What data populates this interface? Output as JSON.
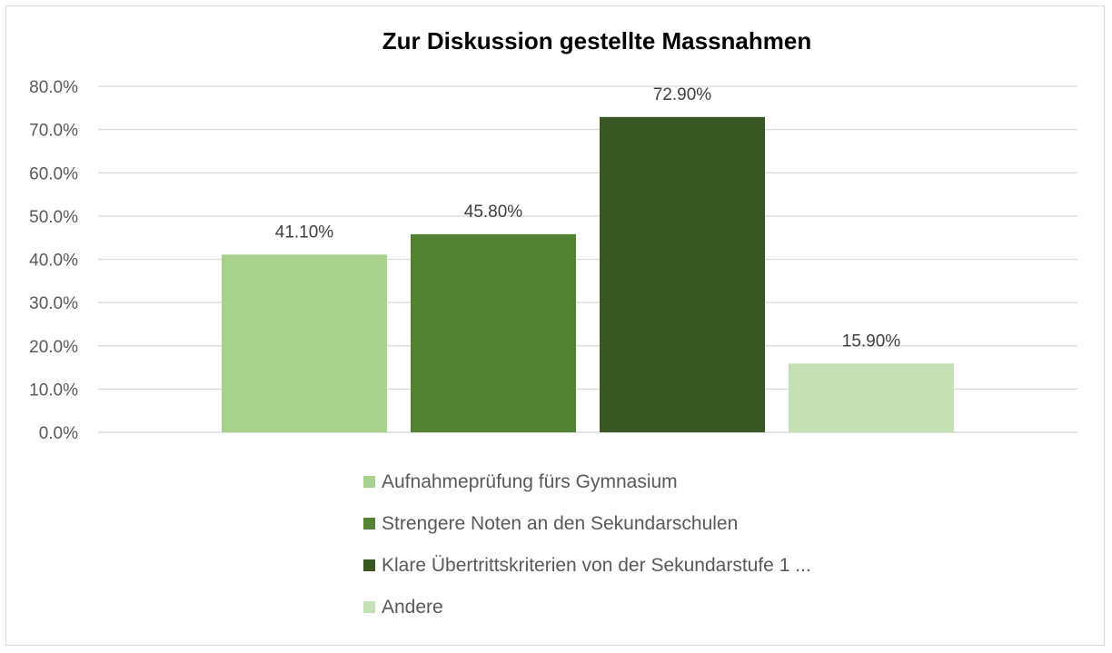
{
  "chart_data": {
    "type": "bar",
    "title": "Zur Diskussion gestellte Massnahmen",
    "xlabel": "",
    "ylabel": "",
    "ylim": [
      0,
      80
    ],
    "yticks": [
      "0.0%",
      "10.0%",
      "20.0%",
      "30.0%",
      "40.0%",
      "50.0%",
      "60.0%",
      "70.0%",
      "80.0%"
    ],
    "grid": true,
    "legend_position": "bottom",
    "series": [
      {
        "name": "Aufnahmeprüfung fürs Gymnasium",
        "value": 41.1,
        "label": "41.10%",
        "color": "#a9d18e"
      },
      {
        "name": "Strengere Noten an den Sekundarschulen",
        "value": 45.8,
        "label": "45.80%",
        "color": "#548235"
      },
      {
        "name": "Klare Übertrittskriterien von der Sekundarstufe 1 ...",
        "value": 72.9,
        "label": "72.90%",
        "color": "#385723"
      },
      {
        "name": "Andere",
        "value": 15.9,
        "label": "15.90%",
        "color": "#c5e0b4"
      }
    ]
  }
}
